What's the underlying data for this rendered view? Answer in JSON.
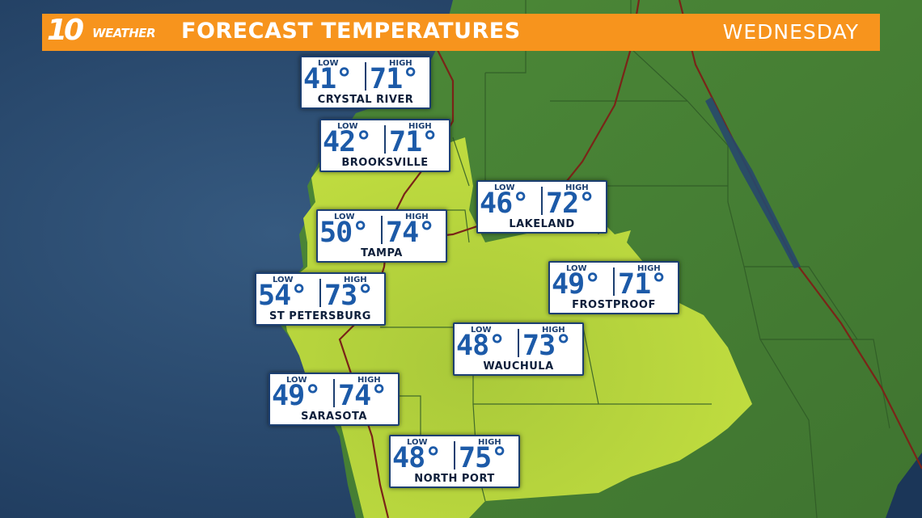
{
  "header": {
    "logo_number": "10",
    "logo_text": "WEATHER",
    "title": "FORECAST TEMPERATURES",
    "day": "WEDNESDAY"
  },
  "colors": {
    "header_orange": "#f7941d",
    "ocean": "#27486b",
    "land_green": "#4f8f3a",
    "highlight_region": "#b7d53c",
    "temp_blue": "#1c5aa8",
    "road_red": "#7a2418"
  },
  "labels": {
    "low": "LOW",
    "high": "HIGH"
  },
  "cities": [
    {
      "name": "CRYSTAL RIVER",
      "low": "41°",
      "high": "71°"
    },
    {
      "name": "BROOKSVILLE",
      "low": "42°",
      "high": "71°"
    },
    {
      "name": "LAKELAND",
      "low": "46°",
      "high": "72°"
    },
    {
      "name": "TAMPA",
      "low": "50°",
      "high": "74°"
    },
    {
      "name": "ST PETERSBURG",
      "low": "54°",
      "high": "73°"
    },
    {
      "name": "FROSTPROOF",
      "low": "49°",
      "high": "71°"
    },
    {
      "name": "WAUCHULA",
      "low": "48°",
      "high": "73°"
    },
    {
      "name": "SARASOTA",
      "low": "49°",
      "high": "74°"
    },
    {
      "name": "NORTH PORT",
      "low": "48°",
      "high": "75°"
    }
  ]
}
